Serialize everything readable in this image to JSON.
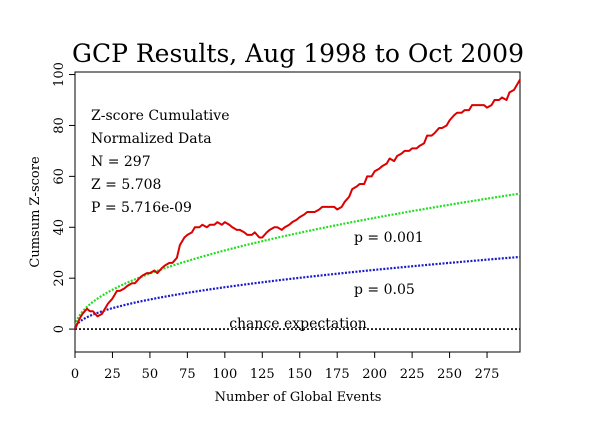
{
  "chart_data": {
    "type": "line",
    "title": "GCP Results, Aug 1998 to Oct 2009",
    "xlabel": "Number of Global Events",
    "ylabel": "Cumsum Z-score",
    "xlim": [
      0,
      297
    ],
    "ylim": [
      -9,
      101
    ],
    "x_ticks": [
      0,
      25,
      50,
      75,
      100,
      125,
      150,
      175,
      200,
      225,
      250,
      275
    ],
    "y_ticks": [
      0,
      20,
      40,
      60,
      80,
      100
    ],
    "grid": false,
    "stats": [
      "Z-score Cumulative",
      "Normalized Data",
      "N = 297",
      "Z = 5.708",
      "P = 5.716e-09"
    ],
    "baseline": {
      "value": 0,
      "label": "chance expectation",
      "color": "#000000"
    },
    "envelopes": [
      {
        "label": "p = 0.001",
        "color": "#22dd22",
        "coefficient": 3.09
      },
      {
        "label": "p = 0.05",
        "color": "#1a1acc",
        "coefficient": 1.645
      }
    ],
    "series": [
      {
        "color": "#dd0000",
        "x": [
          0,
          3,
          5,
          8,
          10,
          12,
          15,
          18,
          20,
          22,
          25,
          28,
          30,
          33,
          35,
          38,
          40,
          43,
          45,
          48,
          50,
          53,
          55,
          58,
          60,
          63,
          65,
          68,
          70,
          73,
          75,
          78,
          80,
          83,
          85,
          88,
          90,
          93,
          95,
          98,
          100,
          103,
          105,
          108,
          110,
          113,
          115,
          118,
          120,
          123,
          125,
          128,
          130,
          133,
          135,
          138,
          140,
          143,
          145,
          148,
          150,
          153,
          155,
          158,
          160,
          163,
          165,
          168,
          170,
          173,
          175,
          178,
          180,
          183,
          185,
          188,
          190,
          193,
          195,
          198,
          200,
          203,
          205,
          208,
          210,
          213,
          215,
          218,
          220,
          223,
          225,
          228,
          230,
          233,
          235,
          238,
          240,
          243,
          245,
          248,
          250,
          253,
          255,
          258,
          260,
          263,
          265,
          268,
          270,
          273,
          275,
          278,
          280,
          283,
          285,
          288,
          290,
          293,
          295,
          297
        ],
        "y": [
          0,
          4,
          6,
          8,
          7,
          7,
          5,
          6,
          8,
          10,
          12,
          15,
          15,
          16,
          17,
          18,
          18,
          20,
          21,
          22,
          22,
          23,
          22,
          24,
          25,
          26,
          26,
          28,
          33,
          36,
          37,
          38,
          40,
          40,
          41,
          40,
          41,
          41,
          42,
          41,
          42,
          41,
          40,
          39,
          39,
          38,
          37,
          37,
          38,
          36,
          36,
          38,
          39,
          40,
          40,
          39,
          40,
          41,
          42,
          43,
          44,
          45,
          46,
          46,
          46,
          47,
          48,
          48,
          48,
          48,
          47,
          48,
          50,
          52,
          55,
          56,
          57,
          57,
          60,
          60,
          62,
          63,
          64,
          65,
          67,
          66,
          68,
          69,
          70,
          70,
          71,
          71,
          72,
          73,
          76,
          76,
          77,
          79,
          79,
          80,
          82,
          84,
          85,
          85,
          86,
          86,
          88,
          88,
          88,
          88,
          87,
          88,
          90,
          90,
          91,
          90,
          93,
          94,
          96,
          98
        ]
      }
    ]
  }
}
